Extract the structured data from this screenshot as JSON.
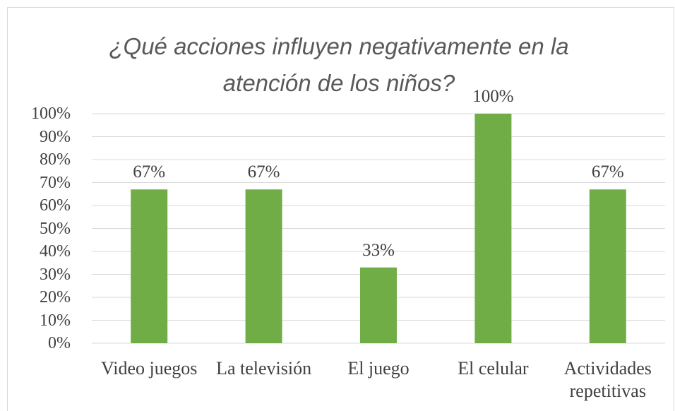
{
  "chart_data": {
    "type": "bar",
    "title": "¿Qué acciones influyen negativamente en la atención de los niños?",
    "categories": [
      "Video juegos",
      "La televisión",
      "El juego",
      "El celular",
      "Actividades repetitivas"
    ],
    "values": [
      67,
      67,
      33,
      100,
      67
    ],
    "value_labels": [
      "67%",
      "67%",
      "33%",
      "100%",
      "67%"
    ],
    "color": "#70ad47",
    "ylim": [
      0,
      100
    ],
    "yticks": [
      {
        "value": 0,
        "label": "0%"
      },
      {
        "value": 10,
        "label": "10%"
      },
      {
        "value": 20,
        "label": "20%"
      },
      {
        "value": 30,
        "label": "30%"
      },
      {
        "value": 40,
        "label": "40%"
      },
      {
        "value": 50,
        "label": "50%"
      },
      {
        "value": 60,
        "label": "60%"
      },
      {
        "value": 70,
        "label": "70%"
      },
      {
        "value": 80,
        "label": "80%"
      },
      {
        "value": 90,
        "label": "90%"
      },
      {
        "value": 100,
        "label": "100%"
      }
    ],
    "grid": true
  }
}
